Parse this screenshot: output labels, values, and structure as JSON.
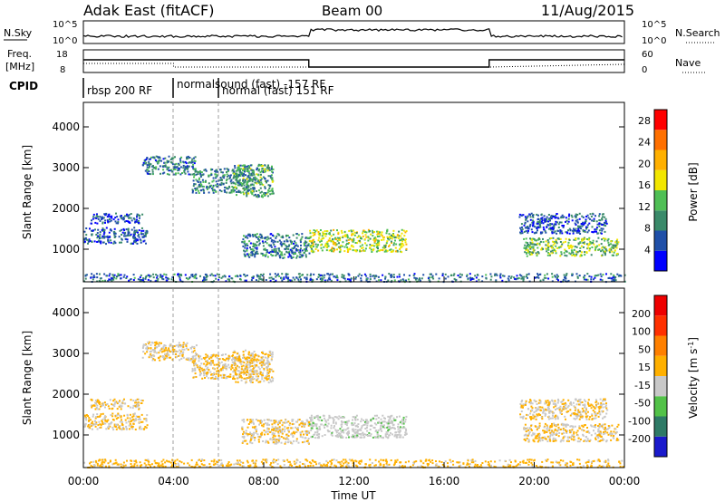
{
  "header": {
    "station": "Adak East (fitACF)",
    "beam": "Beam 00",
    "date": "11/Aug/2015"
  },
  "top_panels": {
    "nsky_label": "N.Sky",
    "nsearch_label": "N.Search",
    "freq_label": "Freq.",
    "freq_unit": "[MHz]",
    "nave_label": "Nave",
    "cpid_label": "CPID",
    "noise_left_ticks": [
      "10^5",
      "10^0"
    ],
    "noise_right_ticks": [
      "10^5",
      "10^0"
    ],
    "freq_ticks": [
      "18",
      "8"
    ],
    "nave_ticks": [
      "60",
      "0"
    ]
  },
  "cpid": {
    "segments": [
      {
        "label": "rbsp 200 RF",
        "start": 0,
        "end": 4
      },
      {
        "label": "normalsound (fast) -157 RF",
        "start": 4,
        "end": 6
      },
      {
        "label": "normal (fast) 151 RF",
        "start": 6,
        "end": 24
      }
    ]
  },
  "chart_data": [
    {
      "type": "heatmap",
      "name": "power",
      "xlabel": "",
      "ylabel": "Slant Range [km]",
      "xlim": [
        0,
        24
      ],
      "ylim": [
        200,
        4600
      ],
      "yticks": [
        "1000",
        "2000",
        "3000",
        "4000"
      ],
      "colorbar": {
        "label": "Power [dB]",
        "ticks": [
          "4",
          "8",
          "12",
          "16",
          "20",
          "24",
          "28"
        ],
        "range": [
          0,
          30
        ],
        "colors": [
          "#0000ff",
          "#1f4fa8",
          "#3a8a6a",
          "#4fbf55",
          "#f2e600",
          "#ffb000",
          "#ff7000",
          "#ff0000"
        ]
      },
      "scatter_regions": [
        {
          "t0": 0.0,
          "t1": 2.8,
          "r0": 1150,
          "r1": 1550,
          "level": 6
        },
        {
          "t0": 0.3,
          "t1": 2.6,
          "r0": 1650,
          "r1": 1900,
          "level": 5
        },
        {
          "t0": 2.6,
          "t1": 5.0,
          "r0": 2850,
          "r1": 3300,
          "level": 8
        },
        {
          "t0": 4.8,
          "t1": 7.6,
          "r0": 2400,
          "r1": 3000,
          "level": 9
        },
        {
          "t0": 6.6,
          "t1": 8.4,
          "r0": 2300,
          "r1": 3100,
          "level": 11
        },
        {
          "t0": 7.0,
          "t1": 10.0,
          "r0": 800,
          "r1": 1400,
          "level": 8
        },
        {
          "t0": 10.0,
          "t1": 14.3,
          "r0": 950,
          "r1": 1500,
          "level": 15
        },
        {
          "t0": 19.5,
          "t1": 23.7,
          "r0": 850,
          "r1": 1300,
          "level": 13
        },
        {
          "t0": 19.3,
          "t1": 23.2,
          "r0": 1400,
          "r1": 1900,
          "level": 6
        },
        {
          "t0": 0.0,
          "t1": 24.0,
          "r0": 220,
          "r1": 420,
          "level": 7
        }
      ]
    },
    {
      "type": "heatmap",
      "name": "velocity",
      "xlabel": "Time UT",
      "ylabel": "Slant Range [km]",
      "xlim": [
        0,
        24
      ],
      "ylim": [
        200,
        4600
      ],
      "xticks": [
        "00:00",
        "04:00",
        "08:00",
        "12:00",
        "16:00",
        "20:00",
        "00:00"
      ],
      "yticks": [
        "1000",
        "2000",
        "3000",
        "4000"
      ],
      "colorbar": {
        "label": "Velocity [m s^-1]",
        "ticks": [
          "200",
          "100",
          "50",
          "15",
          "-15",
          "-50",
          "-100",
          "-200"
        ],
        "range": [
          -250,
          250
        ],
        "colors": [
          "#1a1acc",
          "#2e7a66",
          "#52c248",
          "#c8c8c8",
          "#ffb000",
          "#ff8000",
          "#ff3000",
          "#ee0000"
        ]
      },
      "scatter_regions": [
        {
          "t0": 0.0,
          "t1": 2.8,
          "r0": 1150,
          "r1": 1550,
          "level": 0
        },
        {
          "t0": 0.3,
          "t1": 2.6,
          "r0": 1650,
          "r1": 1900,
          "level": 0
        },
        {
          "t0": 2.6,
          "t1": 5.0,
          "r0": 2850,
          "r1": 3300,
          "level": 0
        },
        {
          "t0": 4.8,
          "t1": 7.6,
          "r0": 2400,
          "r1": 3000,
          "level": 0
        },
        {
          "t0": 6.6,
          "t1": 8.4,
          "r0": 2300,
          "r1": 3100,
          "level": 5
        },
        {
          "t0": 7.0,
          "t1": 10.0,
          "r0": 800,
          "r1": 1400,
          "level": 0
        },
        {
          "t0": 10.0,
          "t1": 14.3,
          "r0": 950,
          "r1": 1500,
          "level": -40
        },
        {
          "t0": 19.5,
          "t1": 23.7,
          "r0": 850,
          "r1": 1300,
          "level": 0
        },
        {
          "t0": 19.3,
          "t1": 23.2,
          "r0": 1400,
          "r1": 1900,
          "level": 0
        },
        {
          "t0": 0.0,
          "t1": 24.0,
          "r0": 220,
          "r1": 420,
          "level": 20
        }
      ]
    }
  ]
}
